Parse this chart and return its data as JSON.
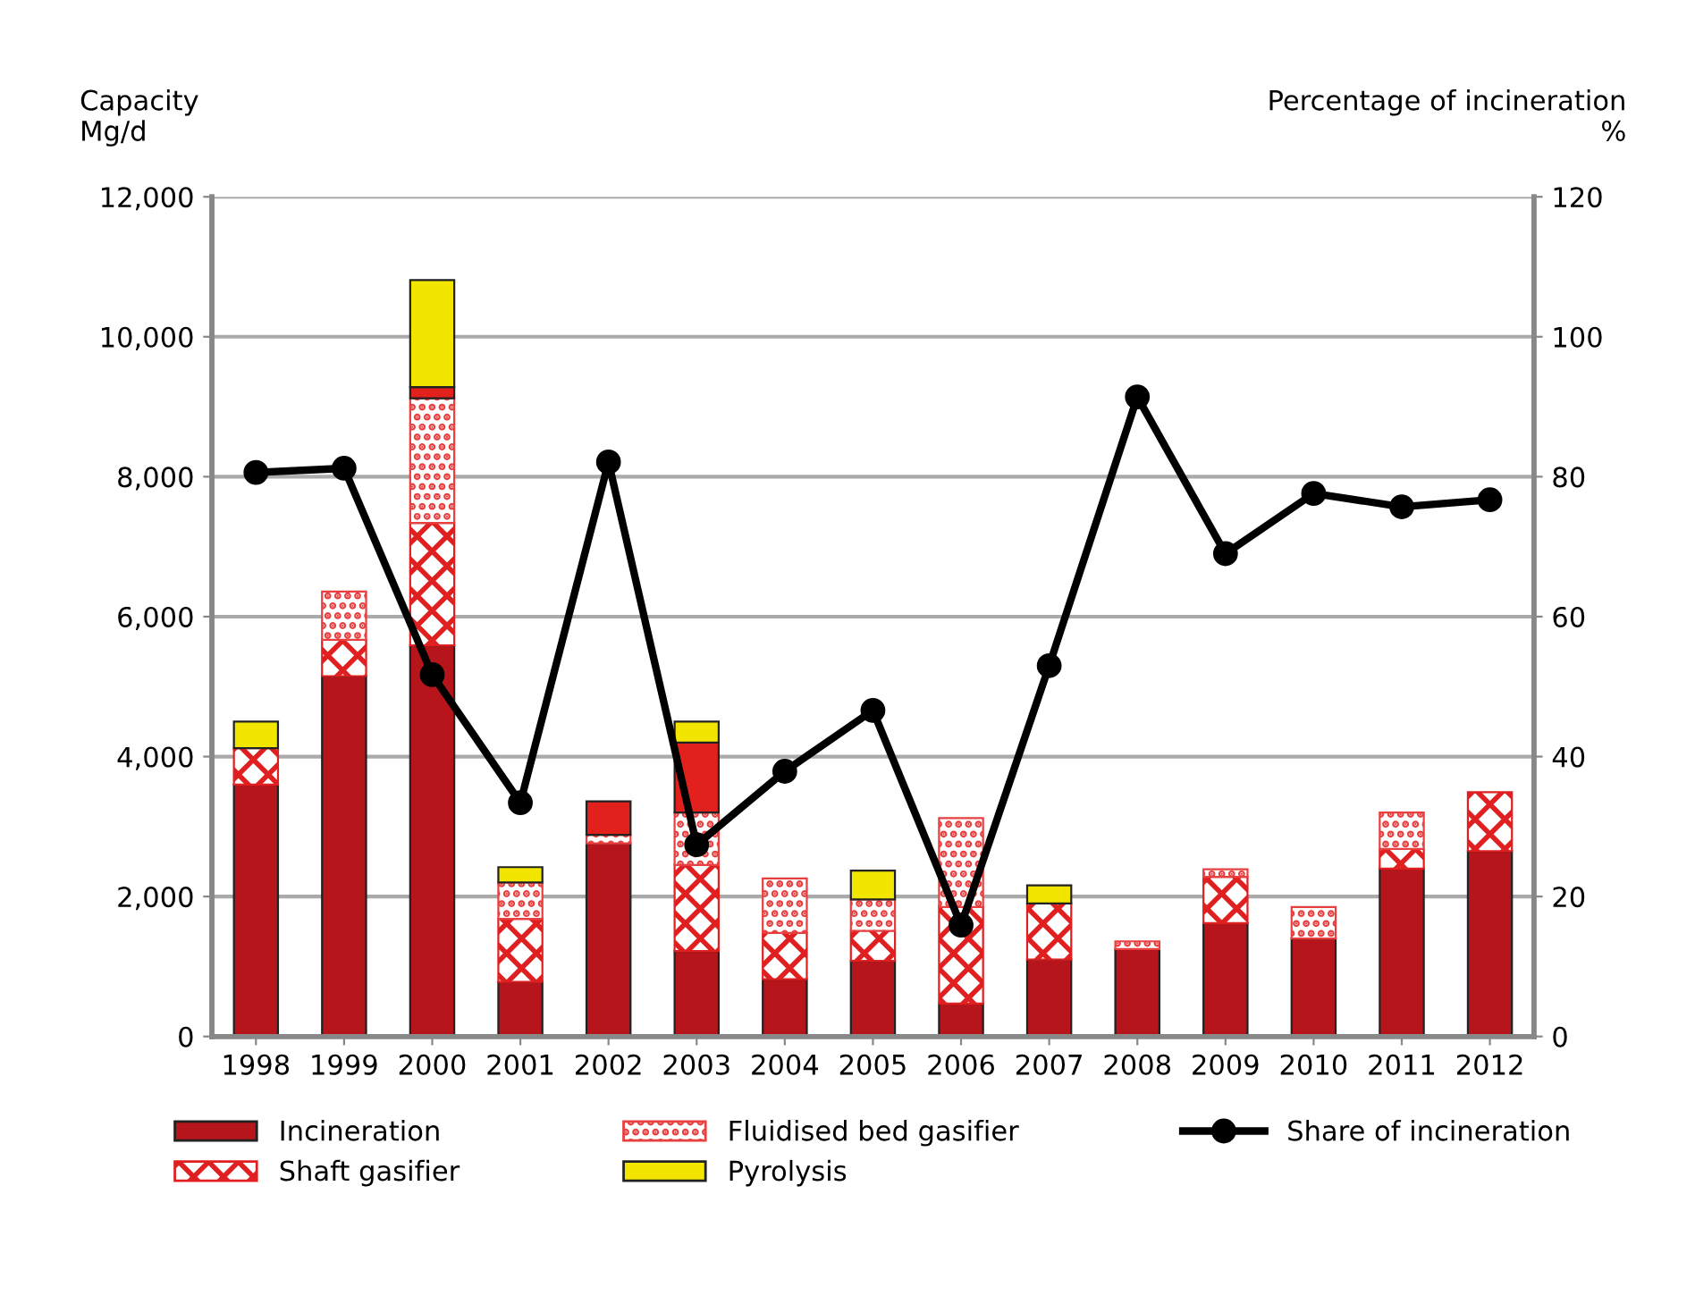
{
  "chart_data": {
    "type": "bar",
    "stacked": true,
    "ylabel": "Capacity\nMg/d",
    "y2label": "Percentage of incineration\n%",
    "categories": [
      "1998",
      "1999",
      "2000",
      "2001",
      "2002",
      "2003",
      "2004",
      "2005",
      "2006",
      "2007",
      "2008",
      "2009",
      "2010",
      "2011",
      "2012"
    ],
    "series": [
      {
        "name": "Incineration",
        "color": "#b5151b",
        "values": [
          3600,
          5150,
          5590,
          780,
          2760,
          1220,
          820,
          1080,
          470,
          1100,
          1250,
          1620,
          1400,
          2400,
          2650
        ]
      },
      {
        "name": "Shaft gasifier",
        "color": "#e02020",
        "values": [
          520,
          520,
          1750,
          900,
          0,
          1230,
          660,
          430,
          1380,
          800,
          0,
          660,
          0,
          280,
          840
        ]
      },
      {
        "name": "Fluidised bed gasifier",
        "color": "#e84040",
        "values": [
          0,
          690,
          1780,
          520,
          120,
          750,
          780,
          450,
          1270,
          0,
          110,
          110,
          450,
          520,
          0
        ]
      },
      {
        "color": "#e3211c",
        "values": [
          0,
          0,
          160,
          0,
          480,
          1000,
          0,
          0,
          0,
          0,
          0,
          0,
          0,
          0,
          0
        ]
      },
      {
        "name": "Pyrolysis",
        "color": "#f2e600",
        "values": [
          380,
          0,
          1530,
          220,
          0,
          300,
          0,
          410,
          0,
          260,
          0,
          0,
          0,
          0,
          0
        ]
      },
      {
        "name": "Share of incineration",
        "type": "line",
        "axis": "y2",
        "color": "#000000",
        "values": [
          80.6,
          81.2,
          51.7,
          33.4,
          82.1,
          27.4,
          37.9,
          46.6,
          15.9,
          53.0,
          91.4,
          69.0,
          77.6,
          75.7,
          76.7
        ]
      }
    ],
    "ylim": [
      0,
      12000
    ],
    "yticks": [
      {
        "value": 0,
        "label": "0"
      },
      {
        "value": 2000,
        "label": "2,000"
      },
      {
        "value": 4000,
        "label": "4,000"
      },
      {
        "value": 6000,
        "label": "6,000"
      },
      {
        "value": 8000,
        "label": "8,000"
      },
      {
        "value": 10000,
        "label": "10,000"
      },
      {
        "value": 12000,
        "label": "12,000"
      }
    ],
    "y2lim": [
      0,
      120
    ],
    "y2ticks": [
      0,
      20,
      40,
      60,
      80,
      100,
      120
    ],
    "grid": "y",
    "legend": "bottom",
    "marker": "circle",
    "line_style": "solid"
  }
}
